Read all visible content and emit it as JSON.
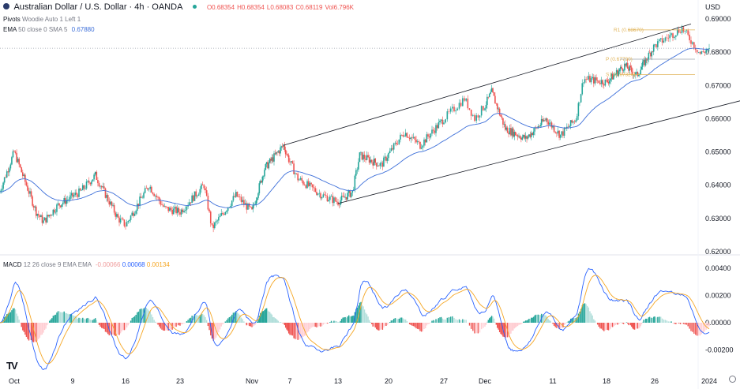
{
  "header": {
    "symbol": "Australian Dollar / U.S. Dollar · 4h · OANDA",
    "open": "O0.68354",
    "high": "H0.68354",
    "low": "L0.68083",
    "close": "C0.68119",
    "volume": "Vol6.796K",
    "pivots_label": "Pivots",
    "pivots_params": "Woodie Auto 1 Left 1",
    "ema_label": "EMA",
    "ema_params": "50 close 0 SMA 5",
    "ema_value": "0.67880",
    "currency": "USD"
  },
  "macd_header": {
    "label": "MACD",
    "params": "12 26 close 9 EMA EMA",
    "hist": "-0.00066",
    "macd": "0.00068",
    "signal": "0.00134"
  },
  "colors": {
    "up": "#26a69a",
    "down": "#ef5350",
    "ema": "#3d6fd9",
    "macd": "#2962ff",
    "signal": "#f5a623",
    "pivot": "#e0b45a",
    "channel": "#131722"
  },
  "chart_data": [
    {
      "type": "candlestick",
      "title": "Australian Dollar / U.S. Dollar · 4h · OANDA",
      "ylim": [
        0.615,
        0.692
      ],
      "y_ticks": [
        "0.69000",
        "0.68000",
        "0.67000",
        "0.66000",
        "0.65000",
        "0.64000",
        "0.63000",
        "0.62000"
      ],
      "y_tick_values": [
        0.69,
        0.68,
        0.67,
        0.66,
        0.65,
        0.64,
        0.63,
        0.62
      ],
      "x_ticks": [
        {
          "label": "Oct",
          "date": "2023-10-01"
        },
        {
          "label": "9",
          "date": "2023-10-09"
        },
        {
          "label": "16",
          "date": "2023-10-16"
        },
        {
          "label": "23",
          "date": "2023-10-23"
        },
        {
          "label": "Nov",
          "date": "2023-11-01"
        },
        {
          "label": "7",
          "date": "2023-11-07"
        },
        {
          "label": "13",
          "date": "2023-11-13"
        },
        {
          "label": "20",
          "date": "2023-11-20"
        },
        {
          "label": "27",
          "date": "2023-11-27"
        },
        {
          "label": "Dec",
          "date": "2023-12-01"
        },
        {
          "label": "11",
          "date": "2023-12-11"
        },
        {
          "label": "18",
          "date": "2023-12-18"
        },
        {
          "label": "26",
          "date": "2023-12-26"
        },
        {
          "label": "2024",
          "date": "2024-01-01"
        }
      ],
      "price_path": [
        [
          "2023-09-29",
          0.638
        ],
        [
          "2023-10-01",
          0.65
        ],
        [
          "2023-10-04",
          0.632
        ],
        [
          "2023-10-05",
          0.629
        ],
        [
          "2023-10-07",
          0.634
        ],
        [
          "2023-10-10",
          0.638
        ],
        [
          "2023-10-12",
          0.643
        ],
        [
          "2023-10-15",
          0.63
        ],
        [
          "2023-10-16",
          0.628
        ],
        [
          "2023-10-19",
          0.64
        ],
        [
          "2023-10-21",
          0.633
        ],
        [
          "2023-10-23",
          0.632
        ],
        [
          "2023-10-26",
          0.64
        ],
        [
          "2023-10-27",
          0.627
        ],
        [
          "2023-10-30",
          0.637
        ],
        [
          "2023-11-01",
          0.632
        ],
        [
          "2023-11-03",
          0.645
        ],
        [
          "2023-11-06",
          0.652
        ],
        [
          "2023-11-08",
          0.642
        ],
        [
          "2023-11-11",
          0.637
        ],
        [
          "2023-11-13",
          0.635
        ],
        [
          "2023-11-15",
          0.638
        ],
        [
          "2023-11-16",
          0.649
        ],
        [
          "2023-11-19",
          0.646
        ],
        [
          "2023-11-22",
          0.656
        ],
        [
          "2023-11-24",
          0.652
        ],
        [
          "2023-11-27",
          0.66
        ],
        [
          "2023-11-29",
          0.666
        ],
        [
          "2023-11-30",
          0.66
        ],
        [
          "2023-12-02",
          0.668
        ],
        [
          "2023-12-04",
          0.657
        ],
        [
          "2023-12-07",
          0.654
        ],
        [
          "2023-12-10",
          0.66
        ],
        [
          "2023-12-12",
          0.655
        ],
        [
          "2023-12-14",
          0.66
        ],
        [
          "2023-12-15",
          0.672
        ],
        [
          "2023-12-18",
          0.671
        ],
        [
          "2023-12-21",
          0.676
        ],
        [
          "2023-12-23",
          0.673
        ],
        [
          "2023-12-26",
          0.682
        ],
        [
          "2023-12-29",
          0.6872
        ],
        [
          "2023-12-30",
          0.6835
        ],
        [
          "2023-12-31",
          0.6795
        ],
        [
          "2024-01-01",
          0.68119
        ]
      ],
      "last_price": 0.68119,
      "channel": {
        "upper": [
          [
            "2023-11-06",
            0.652
          ],
          [
            "2023-12-30",
            0.6885
          ]
        ],
        "lower": [
          [
            "2023-11-13",
            0.6345
          ],
          [
            "2024-01-01",
            0.663
          ]
        ]
      },
      "pivots": [
        {
          "label": "R1 (0.68670)",
          "value": 0.6867
        },
        {
          "label": "P (0.67790)",
          "value": 0.6779
        },
        {
          "label": "S1 (0.67324)",
          "value": 0.67324
        }
      ],
      "ema_period": 50
    },
    {
      "type": "macd",
      "ylim": [
        -0.0028,
        0.0045
      ],
      "y_ticks": [
        "0.00400",
        "0.00200",
        "0.00000",
        "-0.00200"
      ],
      "y_tick_values": [
        0.004,
        0.002,
        0,
        -0.002
      ],
      "params": [
        12,
        26,
        9
      ]
    }
  ]
}
